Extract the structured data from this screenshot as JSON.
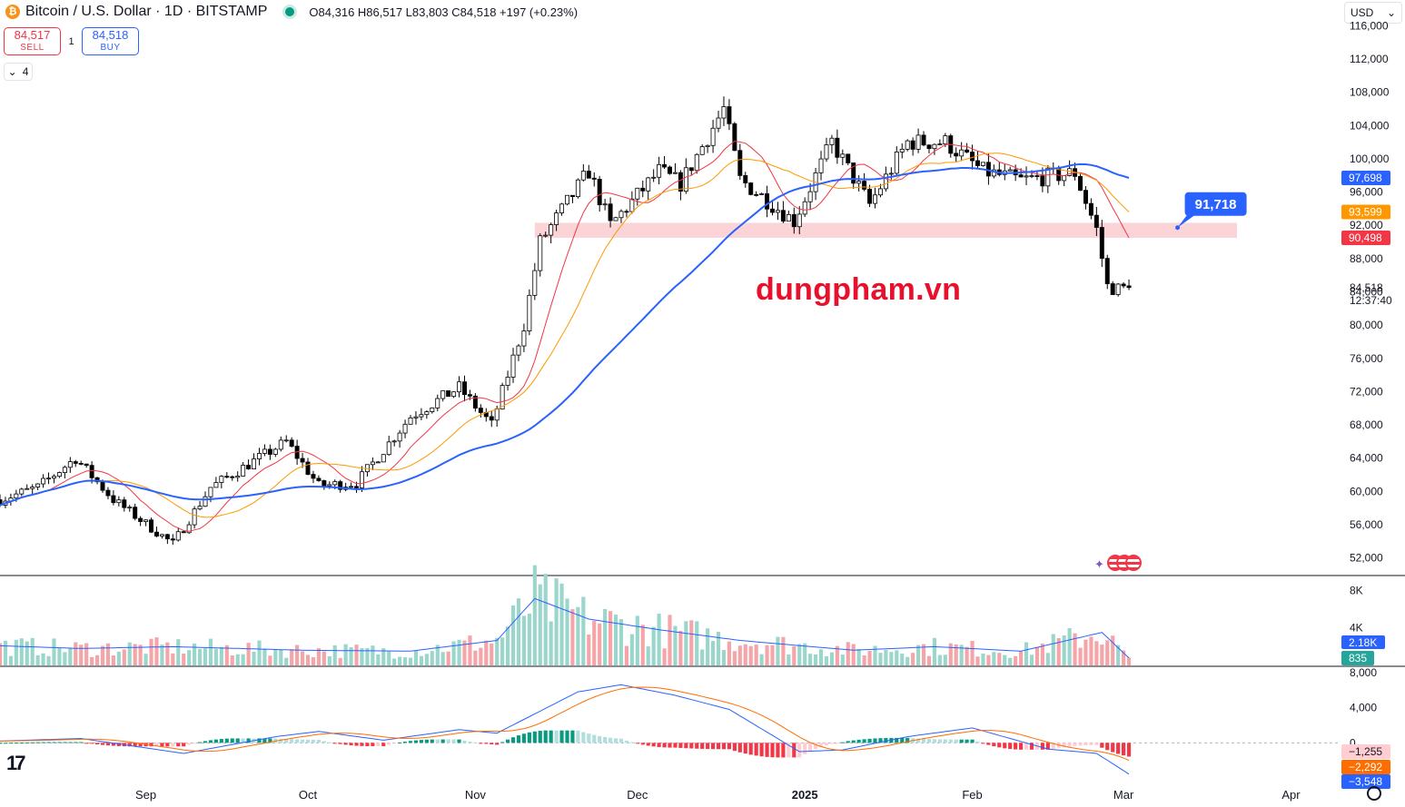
{
  "header": {
    "coin_glyph": "₿",
    "title": "Bitcoin / U.S. Dollar · 1D · BITSTAMP",
    "ohlc": "O84,316  H86,517  L83,803  C84,518  +197 (+0.23%)"
  },
  "trade": {
    "sell_price": "84,517",
    "sell_label": "SELL",
    "spread": "1",
    "buy_price": "84,518",
    "buy_label": "BUY"
  },
  "indicators_toggle": {
    "glyph": "⌄",
    "count": "4"
  },
  "currency": {
    "value": "USD",
    "chevron": "⌄"
  },
  "watermark": "dungpham.vn",
  "logo": "17",
  "colors": {
    "up": "#ffffff",
    "down": "#000000",
    "ma_fast": "#f23645",
    "ma_mid": "#ff9800",
    "ma_slow": "#2962ff",
    "zone": "#fbd4d8",
    "vol_up": "#9bd6cc",
    "vol_down": "#f5a5a8",
    "hist_up_strong": "#089981",
    "hist_up_weak": "#b2dfdb",
    "hist_down_strong": "#f23645",
    "hist_down_weak": "#ffcdd2"
  },
  "chart_data": {
    "type": "candlestick",
    "symbol": "BTCUSD",
    "last_close": 84518,
    "price_axis": {
      "ticks": [
        52000,
        56000,
        60000,
        64000,
        68000,
        72000,
        76000,
        80000,
        84000,
        88000,
        92000,
        96000,
        100000,
        104000,
        108000,
        112000,
        116000
      ],
      "tick_labels": [
        "52,000",
        "56,000",
        "60,000",
        "64,000",
        "68,000",
        "72,000",
        "76,000",
        "80,000",
        "84,000",
        "88,000",
        "92,000",
        "96,000",
        "100,000",
        "104,000",
        "108,000",
        "112,000",
        "116,000"
      ],
      "range": [
        50000,
        118000
      ]
    },
    "time_axis": {
      "labels": [
        "Sep",
        "Oct",
        "Nov",
        "Dec",
        "2025",
        "Feb",
        "Mar",
        "Apr"
      ],
      "label_dates": [
        "2024-09-01",
        "2024-10-01",
        "2024-11-01",
        "2024-12-01",
        "2025-01-01",
        "2025-02-01",
        "2025-03-01",
        "2025-04-01"
      ],
      "range": [
        "2024-08-05",
        "2025-04-10"
      ]
    },
    "ohlc_anchors": [
      {
        "date": "2024-08-05",
        "close": 59000
      },
      {
        "date": "2024-08-12",
        "close": 60500
      },
      {
        "date": "2024-08-19",
        "close": 64000
      },
      {
        "date": "2024-08-26",
        "close": 59000
      },
      {
        "date": "2024-09-06",
        "close": 53700
      },
      {
        "date": "2024-09-13",
        "close": 60500
      },
      {
        "date": "2024-09-27",
        "close": 66000
      },
      {
        "date": "2024-10-03",
        "close": 60700
      },
      {
        "date": "2024-10-10",
        "close": 61000
      },
      {
        "date": "2024-10-20",
        "close": 69000
      },
      {
        "date": "2024-10-29",
        "close": 72500
      },
      {
        "date": "2024-11-04",
        "close": 68000
      },
      {
        "date": "2024-11-10",
        "close": 80000
      },
      {
        "date": "2024-11-13",
        "close": 90000
      },
      {
        "date": "2024-11-22",
        "close": 98500
      },
      {
        "date": "2024-11-26",
        "close": 92000
      },
      {
        "date": "2024-12-05",
        "close": 98500
      },
      {
        "date": "2024-12-09",
        "close": 97000
      },
      {
        "date": "2024-12-17",
        "close": 106000
      },
      {
        "date": "2024-12-20",
        "close": 97500
      },
      {
        "date": "2024-12-30",
        "close": 92500
      },
      {
        "date": "2025-01-06",
        "close": 102000
      },
      {
        "date": "2025-01-13",
        "close": 94500
      },
      {
        "date": "2025-01-20",
        "close": 102000
      },
      {
        "date": "2025-01-27",
        "close": 102000
      },
      {
        "date": "2025-02-03",
        "close": 98500
      },
      {
        "date": "2025-02-10",
        "close": 97400
      },
      {
        "date": "2025-02-20",
        "close": 98300
      },
      {
        "date": "2025-02-24",
        "close": 91500
      },
      {
        "date": "2025-02-26",
        "close": 84700
      },
      {
        "date": "2025-02-28",
        "close": 84300
      },
      {
        "date": "2025-03-02",
        "close": 84518
      }
    ],
    "moving_averages": [
      {
        "color_key": "ma_fast",
        "value": 90498,
        "value_label": "90,498"
      },
      {
        "color_key": "ma_mid",
        "value": 93599,
        "value_label": "93,599"
      },
      {
        "color_key": "ma_slow",
        "value": 97698,
        "value_label": "97,698"
      }
    ],
    "price_labels": {
      "last_price": "84,518",
      "countdown": "12:37:40"
    },
    "zone": {
      "from": 90500,
      "to": 92300,
      "start_date": "2024-11-12",
      "end_date": "2025-03-22"
    },
    "callout": {
      "label": "91,718",
      "value": 91718,
      "date": "2025-03-11"
    },
    "volume_pane": {
      "tick_labels": [
        "8K",
        "4K"
      ],
      "ticks": [
        8000,
        4000
      ],
      "max": 9000,
      "last_volume_label": "835",
      "volume_ma_label": "2.18K",
      "anchors": [
        {
          "date": "2024-08-05",
          "v": 2200
        },
        {
          "date": "2024-08-20",
          "v": 1900
        },
        {
          "date": "2024-09-06",
          "v": 2100
        },
        {
          "date": "2024-09-30",
          "v": 1700
        },
        {
          "date": "2024-10-20",
          "v": 1600
        },
        {
          "date": "2024-11-05",
          "v": 2800
        },
        {
          "date": "2024-11-12",
          "v": 7500
        },
        {
          "date": "2024-11-22",
          "v": 5200
        },
        {
          "date": "2024-12-05",
          "v": 4000
        },
        {
          "date": "2024-12-20",
          "v": 2800
        },
        {
          "date": "2025-01-10",
          "v": 1700
        },
        {
          "date": "2025-01-25",
          "v": 2100
        },
        {
          "date": "2025-02-10",
          "v": 1600
        },
        {
          "date": "2025-02-25",
          "v": 3700
        },
        {
          "date": "2025-03-02",
          "v": 835
        }
      ]
    },
    "macd_pane": {
      "tick_labels": [
        "8,000",
        "4,000",
        "0"
      ],
      "ticks": [
        8000,
        4000,
        0
      ],
      "range": [
        -4300,
        8600
      ],
      "value_labels": [
        "−1,255",
        "−2,292",
        "−3,548"
      ],
      "values": [
        -1255,
        -2292,
        -3548
      ],
      "anchors": [
        {
          "date": "2024-08-05",
          "m": 200
        },
        {
          "date": "2024-08-20",
          "m": 500
        },
        {
          "date": "2024-09-08",
          "m": -1200
        },
        {
          "date": "2024-09-25",
          "m": 700
        },
        {
          "date": "2024-10-03",
          "m": 1300
        },
        {
          "date": "2024-10-15",
          "m": 300
        },
        {
          "date": "2024-10-29",
          "m": 1500
        },
        {
          "date": "2024-11-05",
          "m": 1100
        },
        {
          "date": "2024-11-20",
          "m": 5800
        },
        {
          "date": "2024-11-28",
          "m": 6600
        },
        {
          "date": "2024-12-08",
          "m": 5400
        },
        {
          "date": "2024-12-18",
          "m": 3800
        },
        {
          "date": "2024-12-31",
          "m": -1000
        },
        {
          "date": "2025-01-08",
          "m": -800
        },
        {
          "date": "2025-01-20",
          "m": 700
        },
        {
          "date": "2025-02-01",
          "m": 1700
        },
        {
          "date": "2025-02-15",
          "m": -700
        },
        {
          "date": "2025-02-24",
          "m": -1200
        },
        {
          "date": "2025-03-02",
          "m": -3548
        }
      ]
    }
  }
}
